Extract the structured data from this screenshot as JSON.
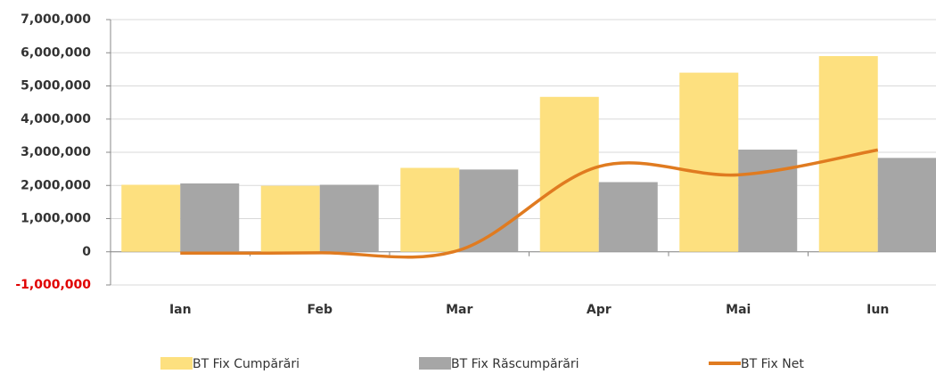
{
  "chart_data": {
    "type": "bar",
    "categories": [
      "Ian",
      "Feb",
      "Mar",
      "Apr",
      "Mai",
      "Iun"
    ],
    "series": [
      {
        "name": "BT Fix Cumpărări",
        "color": "#fde07f",
        "values": [
          2020000,
          1990000,
          2530000,
          4670000,
          5400000,
          5900000
        ]
      },
      {
        "name": "BT Fix Răscumpărări",
        "color": "#a6a6a6",
        "values": [
          2060000,
          2020000,
          2480000,
          2100000,
          3080000,
          2830000
        ]
      },
      {
        "name": "BT Fix Net",
        "type": "line",
        "color": "#e07b20",
        "values": [
          -40000,
          -30000,
          50000,
          2570000,
          2320000,
          3070000
        ]
      }
    ],
    "ylim": [
      -1000000,
      7000000
    ],
    "yticks": [
      {
        "value": -1000000,
        "label": "-1,000,000",
        "color": "#e00000"
      },
      {
        "value": 0,
        "label": "0"
      },
      {
        "value": 1000000,
        "label": "1,000,000"
      },
      {
        "value": 2000000,
        "label": "2,000,000"
      },
      {
        "value": 3000000,
        "label": "3,000,000"
      },
      {
        "value": 4000000,
        "label": "4,000,000"
      },
      {
        "value": 5000000,
        "label": "5,000,000"
      },
      {
        "value": 6000000,
        "label": "6,000,000"
      },
      {
        "value": 7000000,
        "label": "7,000,000"
      }
    ],
    "grid": true,
    "legend": "bottom"
  }
}
